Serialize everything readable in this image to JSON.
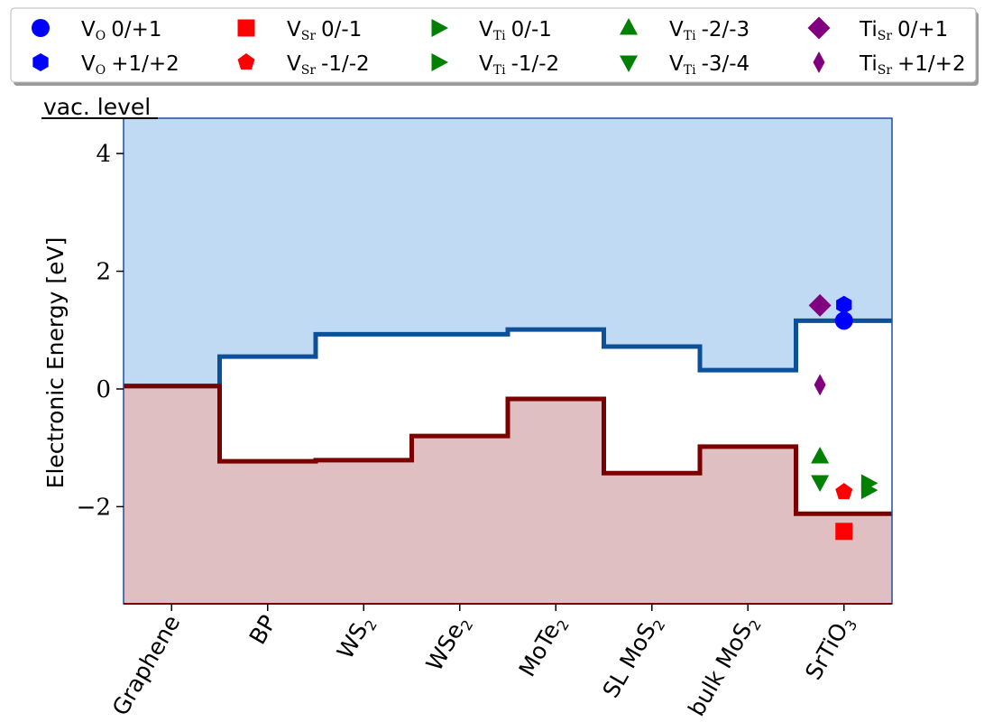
{
  "chart_data": {
    "type": "band-alignment",
    "title": "",
    "xlabel": "",
    "ylabel": "Electronic Energy [eV]",
    "ylim": [
      -3.65,
      4.6
    ],
    "yticks": [
      -2,
      0,
      2,
      4
    ],
    "yticklabels": [
      "−2",
      "0",
      "2",
      "4"
    ],
    "grid": false,
    "legend_position": "top",
    "annotation_label": "vac. level",
    "categories": [
      "Graphene",
      "BP",
      "WS",
      "WSe",
      "MoTe",
      "SL MoS",
      "bulk MoS",
      "SrTiO"
    ],
    "category_subscripts": [
      "",
      "",
      "2",
      "2",
      "2",
      "2",
      "2",
      "3"
    ],
    "cbm": [
      0.05,
      0.55,
      0.93,
      0.93,
      1.01,
      0.72,
      0.32,
      1.16
    ],
    "vbm": [
      0.05,
      -1.23,
      -1.21,
      -0.8,
      -0.17,
      -1.43,
      -0.98,
      -2.12
    ],
    "colors": {
      "conduction_fill": "#c0daf4",
      "conduction_line": "#0b5098",
      "valence_fill": "#dfbfc2",
      "valence_line": "#7a0000",
      "plot_border": "#1f4fa0",
      "bottom_border": "#7a0000"
    },
    "series": [
      {
        "name": "V_O 0/+1",
        "base": "V",
        "sub": "O",
        "label": "0/+1",
        "marker": "circle",
        "color": "#0000ff",
        "x": 7.0,
        "y": 1.16
      },
      {
        "name": "V_O +1/+2",
        "base": "V",
        "sub": "O",
        "label": "+1/+2",
        "marker": "hexagon",
        "color": "#0000ff",
        "x": 7.0,
        "y": 1.43
      },
      {
        "name": "V_Sr 0/-1",
        "base": "V",
        "sub": "Sr",
        "label": "0/-1",
        "marker": "square",
        "color": "#ff0000",
        "x": 7.0,
        "y": -2.42
      },
      {
        "name": "V_Sr -1/-2",
        "base": "V",
        "sub": "Sr",
        "label": "-1/-2",
        "marker": "pentagon",
        "color": "#ff0000",
        "x": 7.0,
        "y": -1.75
      },
      {
        "name": "V_Ti 0/-1",
        "base": "V",
        "sub": "Ti",
        "label": "0/-1",
        "marker": "triangle-right",
        "color": "#008000",
        "x": 7.25,
        "y": -1.6
      },
      {
        "name": "V_Ti -1/-2",
        "base": "V",
        "sub": "Ti",
        "label": "-1/-2",
        "marker": "triangle-right",
        "color": "#008000",
        "x": 7.25,
        "y": -1.72
      },
      {
        "name": "V_Ti -2/-3",
        "base": "V",
        "sub": "Ti",
        "label": "-2/-3",
        "marker": "triangle-up",
        "color": "#008000",
        "x": 6.75,
        "y": -1.15
      },
      {
        "name": "V_Ti -3/-4",
        "base": "V",
        "sub": "Ti",
        "label": "-3/-4",
        "marker": "triangle-down",
        "color": "#008000",
        "x": 6.75,
        "y": -1.58
      },
      {
        "name": "Ti_Sr 0/+1",
        "base": "Ti",
        "sub": "Sr",
        "label": "0/+1",
        "marker": "diamond",
        "color": "#800080",
        "x": 6.75,
        "y": 1.42
      },
      {
        "name": "Ti_Sr +1/+2",
        "base": "Ti",
        "sub": "Sr",
        "label": "+1/+2",
        "marker": "thin-diamond",
        "color": "#800080",
        "x": 6.75,
        "y": 0.07
      }
    ]
  }
}
